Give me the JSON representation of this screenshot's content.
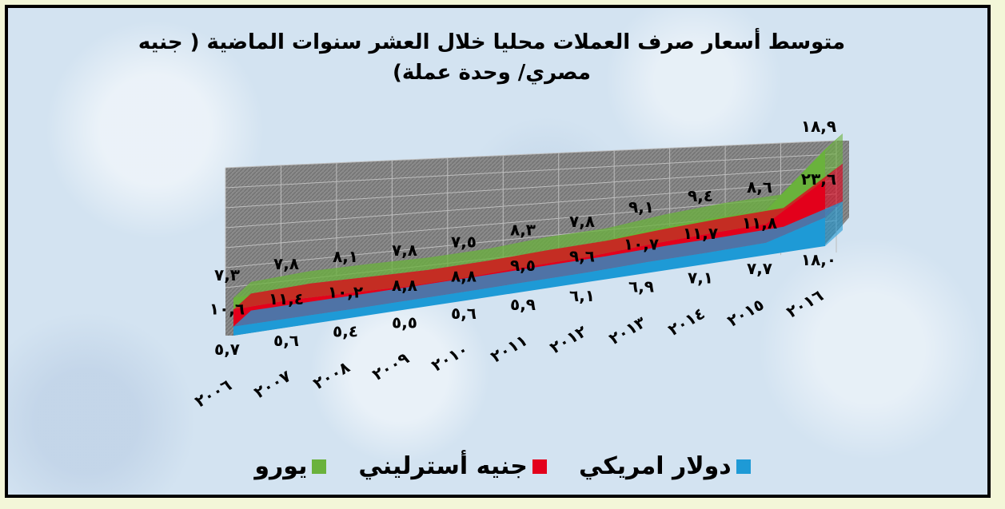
{
  "chart_data": {
    "type": "area",
    "title": "متوسط أسعار صرف العملات محليا خلال العشر سنوات الماضية ( جنيه مصري/ وحدة عملة)",
    "categories": [
      "٢٠٠٦",
      "٢٠٠٧",
      "٢٠٠٨",
      "٢٠٠٩",
      "٢٠١٠",
      "٢٠١١",
      "٢٠١٢",
      "٢٠١٣",
      "٢٠١٤",
      "٢٠١٥",
      "٢٠١٦"
    ],
    "series": [
      {
        "name": "دولار امريكي",
        "color": "#1e9ad6",
        "values": [
          5.7,
          5.6,
          5.4,
          5.5,
          5.6,
          5.9,
          6.1,
          6.9,
          7.1,
          7.7,
          18.0
        ],
        "labels": [
          "٥,٧",
          "٥,٦",
          "٥,٤",
          "٥,٥",
          "٥,٦",
          "٥,٩",
          "٦,١",
          "٦,٩",
          "٧,١",
          "٧,٧",
          "١٨,٠"
        ]
      },
      {
        "name": "جنيه أسترليني",
        "color": "#e3001b",
        "values": [
          10.6,
          11.4,
          10.2,
          8.8,
          8.8,
          9.5,
          9.6,
          10.7,
          11.7,
          11.8,
          23.6
        ],
        "labels": [
          "١٠,٦",
          "١١,٤",
          "١٠,٢",
          "٨,٨",
          "٨,٨",
          "٩,٥",
          "٩,٦",
          "١٠,٧",
          "١١,٧",
          "١١,٨",
          "٢٣,٦"
        ]
      },
      {
        "name": "يورو",
        "color": "#6ab23c",
        "values": [
          7.3,
          7.8,
          8.1,
          7.8,
          7.5,
          8.3,
          7.8,
          9.1,
          9.4,
          8.6,
          18.9
        ],
        "labels": [
          "٧,٣",
          "٧,٨",
          "٨,١",
          "٧,٨",
          "٧,٥",
          "٨,٣",
          "٧,٨",
          "٩,١",
          "٩,٤",
          "٨,٦",
          "١٨,٩"
        ]
      }
    ],
    "legend_position": "bottom",
    "grid": true,
    "stacked": true
  }
}
